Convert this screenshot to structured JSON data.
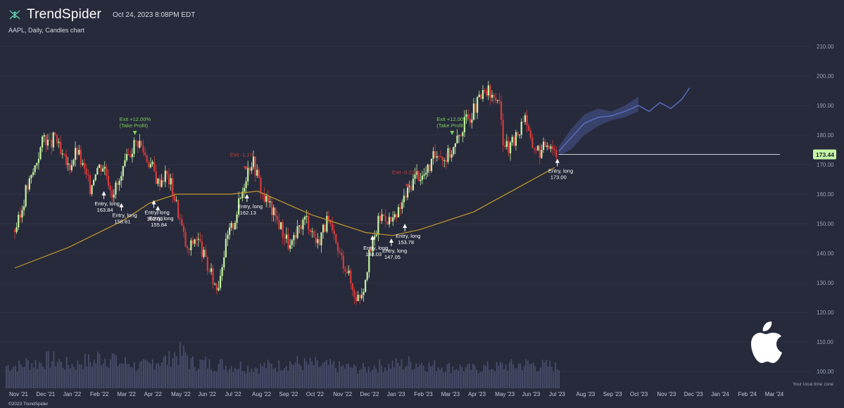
{
  "header": {
    "brand": "TrendSpider",
    "timestamp": "Oct 24, 2023 8:08PM EDT",
    "subtitle": "AAPL, Daily, Candles chart",
    "copyright": "©2023 TrendSpider",
    "timezone_note": "Your local time zone"
  },
  "colors": {
    "background": "#262a3b",
    "bull": "#c5f3a2",
    "bear": "#d83a3a",
    "ma_line": "#c49a2c",
    "forecast": "#5b6fc7",
    "volume": "#4a4d6b",
    "exit_win": "#7fcf5a",
    "exit_loss": "#c04040",
    "price_tag": "#c5f5a6"
  },
  "icons": [
    "spider-logo-icon",
    "apple-logo-icon"
  ],
  "chart_data": {
    "type": "candlestick",
    "symbol": "AAPL",
    "y_ticks": [
      100,
      110,
      120,
      130,
      140,
      150,
      160,
      170,
      180,
      190,
      200,
      210
    ],
    "ylim": [
      98,
      214
    ],
    "x_ticks": [
      "Nov '21",
      "Dec '21",
      "Jan '22",
      "Feb '22",
      "Mar '22",
      "Apr '22",
      "May '22",
      "Jun '22",
      "Jul '22",
      "Aug '22",
      "Sep '22",
      "Oct '22",
      "Nov '22",
      "Dec '22",
      "Jan '23",
      "Feb '23",
      "Mar '23",
      "Apr '23",
      "May '23",
      "Jun '23",
      "Jul '23",
      "Aug '23",
      "Sep '23",
      "Oct '23",
      "Nov '23",
      "Dec '23",
      "Jan '24",
      "Feb '24",
      "Mar '24"
    ],
    "current_price": "173.44",
    "current_price_value": 173.44,
    "price_path": [
      [
        0,
        148
      ],
      [
        0.2,
        152
      ],
      [
        0.4,
        161
      ],
      [
        0.6,
        165
      ],
      [
        0.9,
        174
      ],
      [
        1.1,
        180
      ],
      [
        1.3,
        176
      ],
      [
        1.5,
        180
      ],
      [
        1.7,
        173
      ],
      [
        2.0,
        169
      ],
      [
        2.3,
        175
      ],
      [
        2.6,
        167
      ],
      [
        2.8,
        162
      ],
      [
        3.0,
        169
      ],
      [
        3.3,
        170
      ],
      [
        3.6,
        161
      ],
      [
        3.9,
        164
      ],
      [
        4.1,
        170
      ],
      [
        4.4,
        177
      ],
      [
        4.6,
        178
      ],
      [
        4.9,
        172
      ],
      [
        5.1,
        169
      ],
      [
        5.3,
        164
      ],
      [
        5.6,
        167
      ],
      [
        5.8,
        163
      ],
      [
        6.0,
        156
      ],
      [
        6.2,
        148
      ],
      [
        6.4,
        140
      ],
      [
        6.7,
        146
      ],
      [
        6.9,
        142
      ],
      [
        7.1,
        136
      ],
      [
        7.4,
        130
      ],
      [
        7.5,
        128
      ],
      [
        7.7,
        138
      ],
      [
        7.9,
        146
      ],
      [
        8.1,
        150
      ],
      [
        8.4,
        160
      ],
      [
        8.6,
        168
      ],
      [
        8.8,
        172
      ],
      [
        9.0,
        166
      ],
      [
        9.2,
        159
      ],
      [
        9.4,
        157
      ],
      [
        9.6,
        153
      ],
      [
        9.8,
        150
      ],
      [
        10.0,
        146
      ],
      [
        10.2,
        142
      ],
      [
        10.4,
        145
      ],
      [
        10.6,
        150
      ],
      [
        10.8,
        152
      ],
      [
        11.0,
        148
      ],
      [
        11.2,
        143
      ],
      [
        11.4,
        148
      ],
      [
        11.6,
        151
      ],
      [
        11.8,
        145
      ],
      [
        12.0,
        140
      ],
      [
        12.3,
        135
      ],
      [
        12.5,
        128
      ],
      [
        12.7,
        125
      ],
      [
        12.9,
        128
      ],
      [
        13.1,
        138
      ],
      [
        13.3,
        144
      ],
      [
        13.5,
        152
      ],
      [
        13.7,
        153
      ],
      [
        13.9,
        151
      ],
      [
        14.1,
        151
      ],
      [
        14.3,
        156
      ],
      [
        14.5,
        160
      ],
      [
        14.7,
        164
      ],
      [
        14.9,
        167
      ],
      [
        15.1,
        166
      ],
      [
        15.3,
        168
      ],
      [
        15.5,
        172
      ],
      [
        15.7,
        175
      ],
      [
        15.9,
        172
      ],
      [
        16.1,
        174
      ],
      [
        16.3,
        176
      ],
      [
        16.5,
        181
      ],
      [
        16.7,
        185
      ],
      [
        16.9,
        187
      ],
      [
        17.1,
        190
      ],
      [
        17.3,
        193
      ],
      [
        17.5,
        195
      ],
      [
        17.7,
        192
      ],
      [
        17.9,
        193
      ],
      [
        18.1,
        178
      ],
      [
        18.3,
        175
      ],
      [
        18.5,
        178
      ],
      [
        18.7,
        182
      ],
      [
        18.9,
        188
      ],
      [
        19.1,
        177
      ],
      [
        19.3,
        176
      ],
      [
        19.5,
        174
      ],
      [
        19.7,
        178
      ],
      [
        19.9,
        177
      ],
      [
        20.1,
        173
      ]
    ],
    "moving_average": [
      [
        0,
        135
      ],
      [
        2,
        142
      ],
      [
        4,
        151
      ],
      [
        5,
        157
      ],
      [
        6,
        160
      ],
      [
        8,
        160
      ],
      [
        9,
        161
      ],
      [
        10,
        157
      ],
      [
        11,
        153
      ],
      [
        12,
        150
      ],
      [
        13,
        147
      ],
      [
        14,
        146
      ],
      [
        15,
        148
      ],
      [
        16,
        151
      ],
      [
        17,
        154
      ],
      [
        18,
        159
      ],
      [
        19,
        164
      ],
      [
        20,
        169
      ]
    ],
    "forecast_band": {
      "x": [
        20.15,
        20.6,
        21.1,
        21.6,
        22.1,
        22.6,
        23.1
      ],
      "upper": [
        176,
        182,
        187,
        189,
        188,
        190,
        193
      ],
      "lower": [
        173,
        175,
        180,
        183,
        185,
        186,
        188
      ],
      "line": [
        174.5,
        179,
        184,
        186,
        186.5,
        188,
        190
      ],
      "extension_x": [
        23.1,
        23.5,
        23.9,
        24.3,
        24.7,
        25.0
      ],
      "extension_line": [
        190,
        188,
        191,
        189,
        192,
        196
      ]
    },
    "volume_relative": [
      0.5,
      0.6,
      0.7,
      0.55,
      0.65,
      0.8,
      0.6,
      0.5,
      0.7,
      0.9,
      0.6,
      0.55,
      0.5,
      0.45,
      0.5,
      0.6,
      0.55,
      0.5,
      0.45,
      0.4,
      0.5,
      0.55,
      0.6,
      0.5,
      0.45,
      0.4,
      0.45,
      0.5,
      0.55,
      0.5,
      0.45,
      0.5,
      0.4,
      0.45,
      0.5,
      0.6,
      0.5,
      0.45,
      0.4,
      0.35,
      0.4,
      0.45,
      0.5,
      0.4,
      0.35,
      0.4,
      0.45,
      0.4,
      0.35,
      0.3
    ],
    "annotations": [
      {
        "kind": "exit",
        "label": "Exit +12.00%",
        "sub": "(Take Profit)",
        "x": 4.45,
        "price": 180,
        "color": "win"
      },
      {
        "kind": "exit",
        "label": "Exit +12.00%",
        "sub": "(Take Profit)",
        "x": 16.2,
        "price": 180,
        "color": "win"
      },
      {
        "kind": "exit",
        "label": "Exit -0.22%",
        "sub": "",
        "x": 14.55,
        "price": 162,
        "color": "loss"
      },
      {
        "kind": "exit",
        "label": "Exit -1.1%",
        "sub": "",
        "x": 8.55,
        "price": 168,
        "color": "loss"
      },
      {
        "kind": "entry",
        "label": "Entry, long",
        "value": "163.84",
        "x": 3.3,
        "price": 161
      },
      {
        "kind": "entry",
        "label": "Entry, long",
        "value": "158.61",
        "x": 3.95,
        "price": 157
      },
      {
        "kind": "entry",
        "label": "Entry, long",
        "value": "162.03",
        "x": 5.15,
        "price": 158
      },
      {
        "kind": "entry",
        "label": "Entry, long",
        "value": "155.84",
        "x": 5.3,
        "price": 156
      },
      {
        "kind": "entry",
        "label": "Entry, long",
        "value": "162.13",
        "x": 8.6,
        "price": 160
      },
      {
        "kind": "entry",
        "label": "Entry, long",
        "value": "148.03",
        "x": 13.25,
        "price": 146
      },
      {
        "kind": "entry",
        "label": "Entry, long",
        "value": "147.05",
        "x": 13.95,
        "price": 145
      },
      {
        "kind": "entry",
        "label": "Entry, long",
        "value": "153.78",
        "x": 14.45,
        "price": 150
      },
      {
        "kind": "entry",
        "label": "Entry, long",
        "value": "173.00",
        "x": 20.1,
        "price": 172
      }
    ]
  }
}
